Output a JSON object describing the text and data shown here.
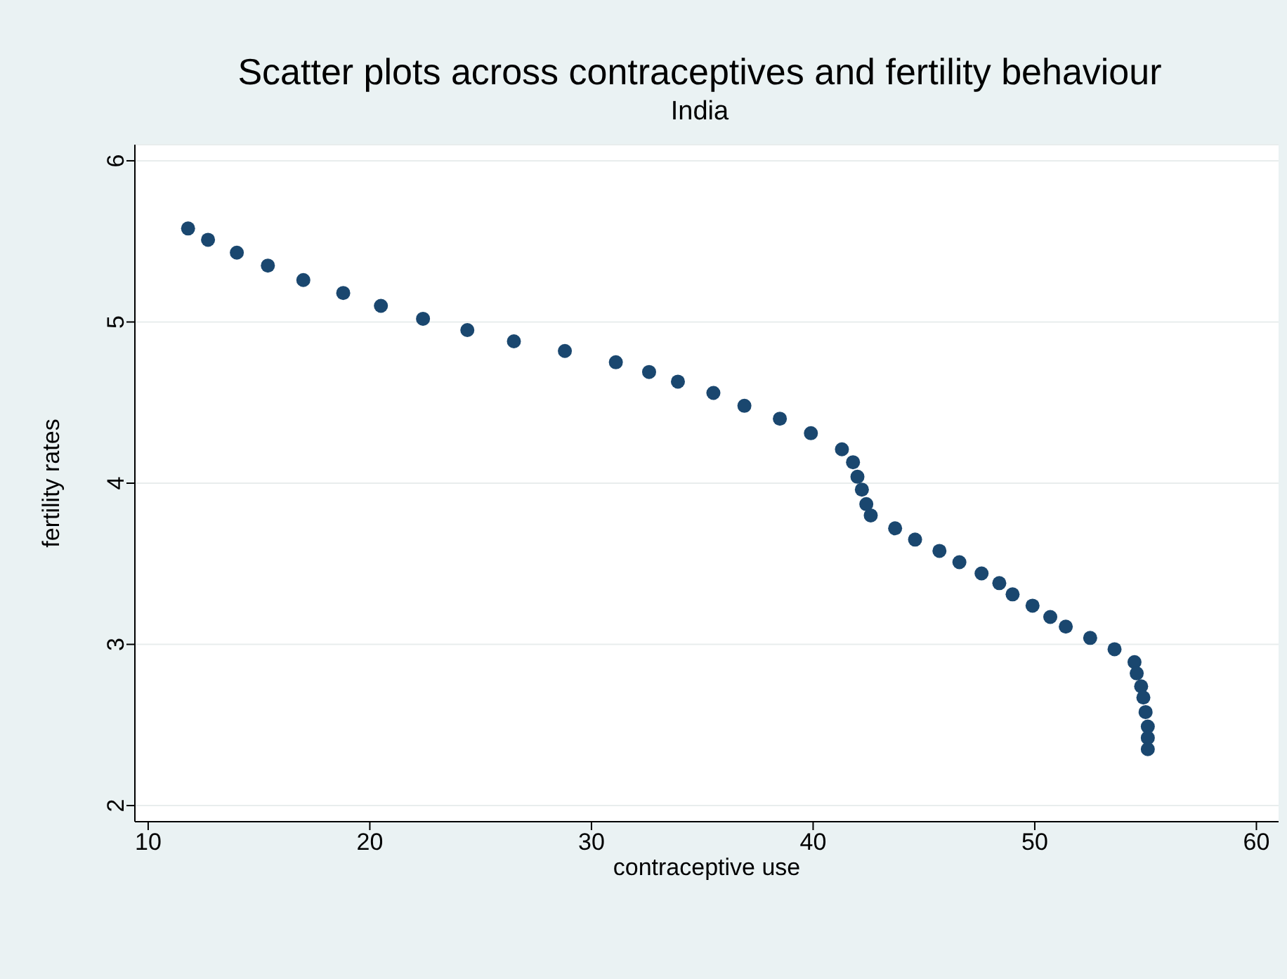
{
  "chart_data": {
    "type": "scatter",
    "title": "Scatter plots across contraceptives and fertility behaviour",
    "subtitle": "India",
    "xlabel": "contraceptive use",
    "ylabel": "fertility rates",
    "x": [
      11.8,
      12.7,
      14.0,
      15.4,
      17.0,
      18.8,
      20.5,
      22.4,
      24.4,
      26.5,
      28.8,
      31.1,
      32.6,
      33.9,
      35.5,
      36.9,
      38.5,
      39.9,
      41.3,
      41.8,
      42.0,
      42.2,
      42.4,
      42.6,
      43.7,
      44.6,
      45.7,
      46.6,
      47.6,
      48.4,
      49.0,
      49.9,
      50.7,
      51.4,
      52.5,
      53.6,
      54.5,
      54.6,
      54.8,
      54.9,
      55.0,
      55.1,
      55.1,
      55.1
    ],
    "values": [
      5.58,
      5.51,
      5.43,
      5.35,
      5.26,
      5.18,
      5.1,
      5.02,
      4.95,
      4.88,
      4.82,
      4.75,
      4.69,
      4.63,
      4.56,
      4.48,
      4.4,
      4.31,
      4.21,
      4.13,
      4.04,
      3.96,
      3.87,
      3.8,
      3.72,
      3.65,
      3.58,
      3.51,
      3.44,
      3.38,
      3.31,
      3.24,
      3.17,
      3.11,
      3.04,
      2.97,
      2.89,
      2.82,
      2.74,
      2.67,
      2.58,
      2.49,
      2.42,
      2.35
    ],
    "color": "#1a476f",
    "marker": "circle",
    "xlim": [
      9.4,
      61
    ],
    "xticks": [
      10,
      20,
      30,
      40,
      50,
      60
    ],
    "ylim": [
      1.9,
      6.1
    ],
    "yticks": [
      2,
      3,
      4,
      5,
      6
    ],
    "grid": "y"
  }
}
